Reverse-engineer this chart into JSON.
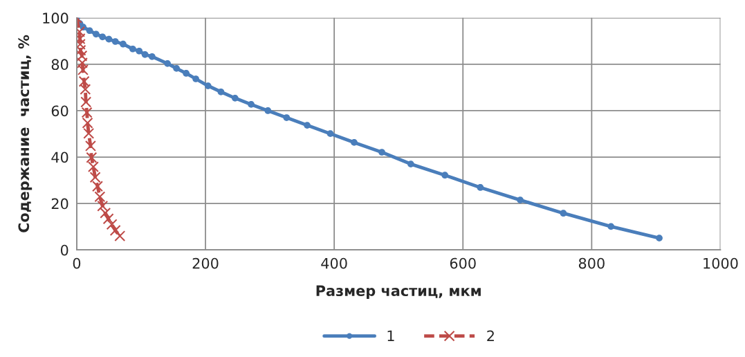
{
  "chart_data": {
    "type": "line",
    "xlabel": "Размер частиц, мкм",
    "ylabel": "Содержание  частиц, %",
    "xlim": [
      0,
      1000
    ],
    "xticks": [
      0,
      200,
      400,
      600,
      800,
      1000
    ],
    "ylim": [
      0,
      100
    ],
    "yticks": [
      0,
      20,
      40,
      60,
      80,
      100
    ],
    "grid": true,
    "legend": "bottom",
    "series": [
      {
        "name": "1",
        "color": "#4a7ebb",
        "marker": "circle",
        "line_style": "solid",
        "x": [
          0,
          5,
          10,
          20,
          30,
          40,
          50,
          60,
          72,
          87,
          97,
          106,
          117,
          141,
          155,
          170,
          185,
          204,
          224,
          246,
          271,
          297,
          326,
          358,
          394,
          431,
          474,
          519,
          572,
          627,
          689,
          756,
          830,
          905
        ],
        "values": [
          100,
          97.5,
          96,
          94.5,
          93,
          91.8,
          90.8,
          89.8,
          88.7,
          86.6,
          85.7,
          84.2,
          83.3,
          80.3,
          78.2,
          76.1,
          73.7,
          70.7,
          68.1,
          65.4,
          62.7,
          60.0,
          57.0,
          53.7,
          50.1,
          46.3,
          42.1,
          37.0,
          32.2,
          26.9,
          21.5,
          15.8,
          10.1,
          5.1
        ]
      },
      {
        "name": "2",
        "color": "#be4b48",
        "marker": "cross",
        "line_style": "dashed",
        "x": [
          0,
          4.3,
          5,
          5.3,
          6,
          8,
          8.6,
          9.7,
          11.5,
          13.3,
          14.3,
          15.8,
          16.8,
          18.6,
          21.5,
          23,
          25.8,
          28.7,
          32.3,
          35.9,
          40.1,
          44.4,
          49.1,
          54.5,
          59.9,
          67
        ],
        "values": [
          100,
          94,
          91,
          88.6,
          86,
          83.6,
          80.6,
          77.6,
          72.6,
          69.2,
          63.7,
          59.2,
          54.7,
          50.2,
          44.8,
          39.8,
          35.8,
          31.3,
          27.4,
          22.9,
          18.9,
          15.9,
          13.4,
          11,
          8.4,
          6
        ]
      }
    ]
  }
}
